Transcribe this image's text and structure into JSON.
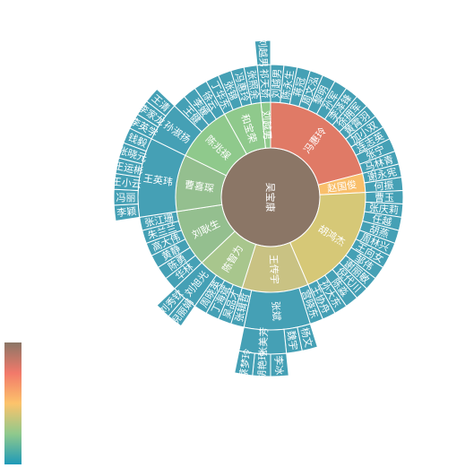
{
  "chart_data": {
    "type": "sunburst",
    "palette_stops": [
      "#1e9ab8",
      "#8fc98c",
      "#fcc36b",
      "#f2796a",
      "#8b7666"
    ],
    "level_colors": {
      "root": "#8b7666",
      "branch_1": "#e07a66",
      "branch_2": "#f9bf6b",
      "branch_3": "#d6c877",
      "branch_4": "#94bf8f",
      "leaf": "#45a0b5"
    },
    "visual_map": {
      "orient": "vertical",
      "colors": [
        "#8b7666",
        "#f2796a",
        "#fcc36b",
        "#8fc98c",
        "#1e9ab8"
      ]
    },
    "tree": {
      "name": "吴宝康",
      "children": [
        {
          "name": "冯惠玲",
          "color": "#e07a66",
          "children": [
            {
              "name": "刘越男"
            },
            {
              "name": "陈永生"
            },
            {
              "name": "蒋冠"
            },
            {
              "name": "周文泓"
            },
            {
              "name": "黎明"
            },
            {
              "name": "孙军"
            },
            {
              "name": "李泽锋"
            },
            {
              "name": "徐拥军"
            },
            {
              "name": "黄霄羽"
            },
            {
              "name": "加小双"
            },
            {
              "name": "连志英"
            },
            {
              "name": "张宁"
            },
            {
              "name": "马林青"
            }
          ]
        },
        {
          "name": "赵国俊",
          "color": "#f9bf6b",
          "children": [
            {
              "name": "谢永宪"
            },
            {
              "name": "何振"
            }
          ]
        },
        {
          "name": "胡鸿杰",
          "color": "#d6c877",
          "children": [
            {
              "name": "曹玉"
            },
            {
              "name": "张庆莉"
            },
            {
              "name": "任越"
            },
            {
              "name": "胡燕"
            },
            {
              "name": "周林兴"
            },
            {
              "name": "王向女"
            },
            {
              "name": "邹伟"
            },
            {
              "name": "谢丽敏"
            },
            {
              "name": "倪代川"
            },
            {
              "name": "陈淼"
            },
            {
              "name": "孙大东"
            },
            {
              "name": "王协舟"
            }
          ]
        },
        {
          "name": "王传宇",
          "color": "#c9c283",
          "children": [
            {
              "name": "宫晓东"
            },
            {
              "name": "张斌",
              "children": [
                {
                  "name": "杨文"
                },
                {
                  "name": "魏宇"
                },
                {
                  "name": "张美芳",
                  "children": [
                    {
                      "name": "李冰"
                    },
                    {
                      "name": "胡艳玲"
                    },
                    {
                      "name": "蔡梦玲"
                    }
                  ]
                }
              ]
            },
            {
              "name": "张辑哲"
            }
          ]
        },
        {
          "name": "陈智为",
          "color": "#a8c68d",
          "children": [
            {
              "name": "吴品才"
            },
            {
              "name": "丁海斌"
            },
            {
              "name": "周晓英"
            },
            {
              "name": "刘旭光",
              "children": [
                {
                  "name": "倪丽娟"
                },
                {
                  "name": "刘秀钦"
                }
              ]
            }
          ]
        },
        {
          "name": "刘耿生",
          "color": "#94bf8f",
          "children": [
            {
              "name": "华林"
            },
            {
              "name": "陈勇"
            },
            {
              "name": "黄静"
            },
            {
              "name": "高大伟"
            },
            {
              "name": "朱兰兰"
            },
            {
              "name": "张江珊"
            }
          ]
        },
        {
          "name": "曹喜琛",
          "color": "#94bf8f",
          "children": [
            {
              "name": "王英玮",
              "children": [
                {
                  "name": "李颖"
                },
                {
                  "name": "冯丽"
                },
                {
                  "name": "王小云"
                },
                {
                  "name": "王运彬"
                },
                {
                  "name": "张晓元"
                },
                {
                  "name": "钱毅"
                }
              ]
            }
          ]
        },
        {
          "name": "陈兆祦",
          "color": "#8fc98c",
          "children": [
            {
              "name": "孙淑扬",
              "children": [
                {
                  "name": "李英学"
                },
                {
                  "name": "李家龙"
                },
                {
                  "name": "王清"
                }
              ]
            },
            {
              "name": "王健"
            },
            {
              "name": "李媛"
            },
            {
              "name": "徐云"
            }
          ]
        },
        {
          "name": "和宝荣",
          "color": "#8fc98c",
          "children": [
            {
              "name": "丁华东"
            },
            {
              "name": "张锦"
            },
            {
              "name": "冯惠玲"
            },
            {
              "name": "张照余"
            }
          ]
        },
        {
          "name": "刘越男",
          "color": "#8fc98c",
          "children": [
            {
              "name": "祁天娇",
              "children": [
                {
                  "name": "刘越男"
                }
              ]
            }
          ]
        }
      ]
    }
  }
}
